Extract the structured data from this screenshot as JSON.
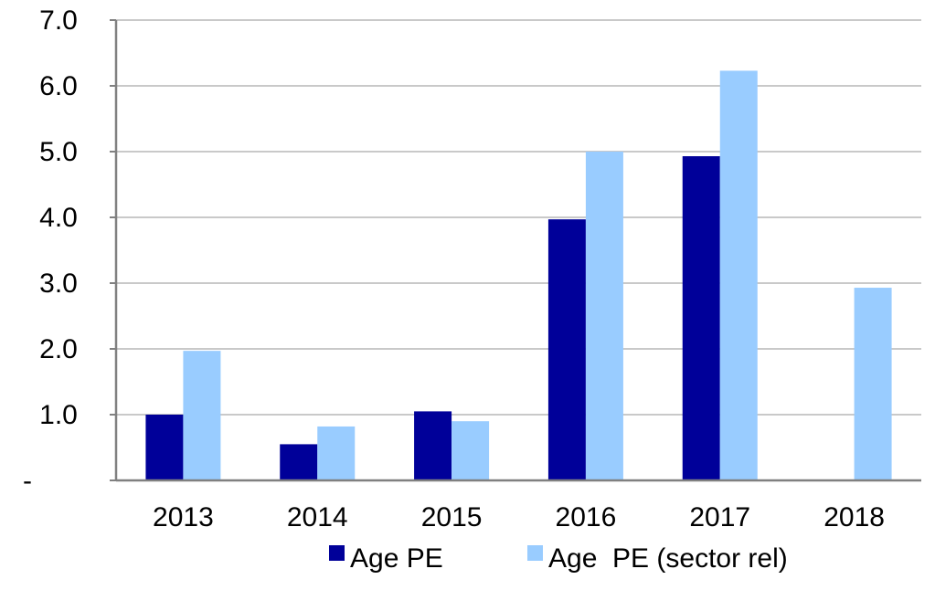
{
  "chart_data": {
    "type": "bar",
    "categories": [
      "2013",
      "2014",
      "2015",
      "2016",
      "2017",
      "2018"
    ],
    "series": [
      {
        "name": "Age PE",
        "color": "#000099",
        "values": [
          1.0,
          0.55,
          1.05,
          3.97,
          4.93,
          null
        ]
      },
      {
        "name": "Age  PE (sector rel)",
        "color": "#99CCFF",
        "values": [
          1.97,
          0.82,
          0.9,
          5.0,
          6.23,
          2.93
        ]
      }
    ],
    "y_ticks": [
      {
        "value": 0,
        "label": "-"
      },
      {
        "value": 1,
        "label": "1.0"
      },
      {
        "value": 2,
        "label": "2.0"
      },
      {
        "value": 3,
        "label": "3.0"
      },
      {
        "value": 4,
        "label": "4.0"
      },
      {
        "value": 5,
        "label": "5.0"
      },
      {
        "value": 6,
        "label": "6.0"
      },
      {
        "value": 7,
        "label": "7.0"
      }
    ],
    "ylim": [
      0,
      7
    ],
    "grid": true,
    "legend_position": "bottom"
  }
}
